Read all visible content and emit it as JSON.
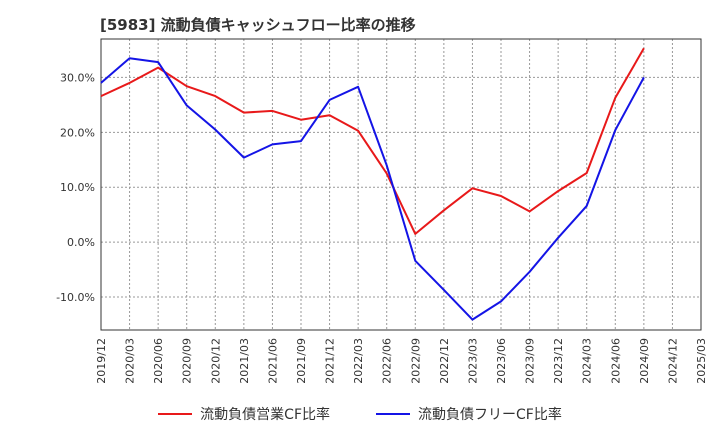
{
  "chart_data": {
    "type": "line",
    "title": "[5983]  流動負債キャッシュフロー比率の推移",
    "xlabel": "",
    "ylabel": "",
    "ylim": [
      -16,
      37
    ],
    "yticks": [
      -10,
      0,
      10,
      20,
      30
    ],
    "ytick_labels": [
      "-10.0%",
      "0.0%",
      "10.0%",
      "20.0%",
      "30.0%"
    ],
    "categories": [
      "2019/12",
      "2020/03",
      "2020/06",
      "2020/09",
      "2020/12",
      "2021/03",
      "2021/06",
      "2021/09",
      "2021/12",
      "2022/03",
      "2022/06",
      "2022/09",
      "2022/12",
      "2023/03",
      "2023/06",
      "2023/09",
      "2023/12",
      "2024/03",
      "2024/06",
      "2024/09",
      "2024/12",
      "2025/03"
    ],
    "grid": true,
    "legend_position": "bottom",
    "series": [
      {
        "name": "流動負債営業CF比率",
        "color": "#e8191a",
        "values": [
          26.6,
          29.0,
          31.8,
          28.4,
          26.6,
          23.6,
          23.9,
          22.3,
          23.1,
          20.3,
          12.5,
          1.5,
          5.8,
          9.8,
          8.4,
          5.6,
          9.3,
          12.6,
          26.3,
          35.3,
          null,
          null
        ]
      },
      {
        "name": "流動負債フリーCF比率",
        "color": "#1414e6",
        "values": [
          29.0,
          33.5,
          32.8,
          24.9,
          20.5,
          15.4,
          17.8,
          18.4,
          25.9,
          28.3,
          14.0,
          -3.4,
          -8.7,
          -14.1,
          -10.8,
          -5.4,
          0.8,
          6.6,
          20.4,
          30.0,
          null,
          null
        ]
      }
    ]
  }
}
